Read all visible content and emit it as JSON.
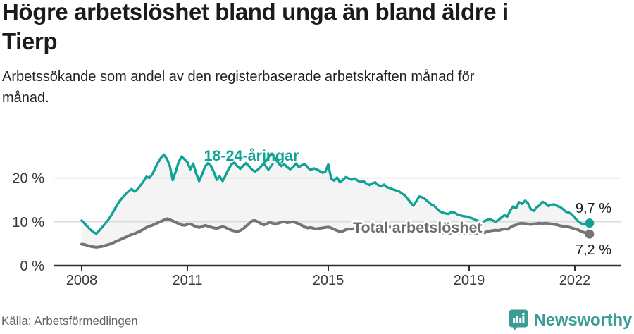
{
  "header": {
    "title_lines": [
      "Högre arbetslöshet bland unga än bland äldre i",
      "Tierp"
    ],
    "subtitle_lines": [
      "Arbetssökande som andel av den registerbaserade arbetskraften månad för",
      "månad."
    ]
  },
  "footer": {
    "source": "Källa: Arbetsförmedlingen",
    "brand": "Newsworthy",
    "brand_icon": "newsworthy-bubble-barchart-icon",
    "brand_color": "#3a9c94"
  },
  "chart_data": {
    "type": "line",
    "title": "Högre arbetslöshet bland unga än bland äldre i Tierp",
    "subtitle": "Arbetssökande som andel av den registerbaserade arbetskraften månad för månad.",
    "frequency": "monthly",
    "x_start": "2008-01",
    "x_end": "2022-06",
    "x_tick_years": [
      2008,
      2011,
      2015,
      2019,
      2022
    ],
    "x_tick_labels": [
      "2008",
      "2011",
      "2015",
      "2019",
      "2022"
    ],
    "y_ticks": [
      0,
      10,
      20
    ],
    "y_tick_labels": [
      "0 %",
      "10 %",
      "20 %"
    ],
    "ylim": [
      0,
      27
    ],
    "grid": "horizontal",
    "band_fill": "#f4f4f4",
    "axis_color": "#2e2e2e",
    "grid_color": "#dadada",
    "series": [
      {
        "name": "18-24-åringar",
        "color": "#11a296",
        "end_label": "9,7 %",
        "end_value": 9.7,
        "values": [
          10.3,
          9.6,
          8.9,
          8.2,
          7.6,
          7.3,
          8.0,
          8.8,
          9.6,
          10.4,
          11.4,
          12.6,
          13.8,
          14.8,
          15.6,
          16.3,
          17.0,
          17.5,
          16.9,
          17.4,
          18.3,
          19.2,
          20.3,
          20.0,
          20.8,
          22.2,
          23.5,
          24.6,
          25.3,
          24.4,
          22.8,
          19.5,
          21.4,
          23.6,
          24.9,
          24.3,
          23.6,
          22.0,
          23.3,
          21.0,
          19.3,
          20.8,
          22.6,
          23.4,
          22.8,
          21.4,
          19.6,
          20.4,
          19.3,
          20.6,
          22.0,
          23.1,
          23.5,
          22.7,
          22.1,
          22.8,
          23.4,
          22.7,
          21.9,
          21.5,
          21.9,
          22.6,
          23.3,
          24.1,
          25.1,
          25.4,
          24.4,
          23.4,
          22.7,
          23.1,
          22.5,
          22.0,
          22.5,
          23.3,
          22.5,
          22.9,
          23.2,
          22.4,
          21.8,
          22.2,
          22.0,
          21.6,
          21.2,
          21.4,
          23.1,
          19.8,
          19.4,
          20.1,
          19.0,
          19.6,
          20.2,
          19.9,
          19.6,
          19.9,
          19.4,
          19.1,
          19.3,
          18.7,
          18.4,
          18.8,
          19.0,
          18.4,
          18.1,
          18.5,
          17.9,
          17.7,
          17.4,
          17.2,
          17.0,
          16.5,
          16.1,
          15.3,
          14.4,
          13.7,
          14.7,
          15.8,
          15.6,
          15.2,
          14.6,
          14.0,
          13.7,
          13.0,
          12.4,
          12.1,
          11.9,
          11.8,
          12.3,
          12.1,
          11.7,
          11.5,
          11.3,
          11.2,
          11.0,
          10.8,
          10.5,
          10.2,
          9.9,
          10.1,
          10.4,
          10.7,
          10.3,
          10.0,
          10.4,
          11.0,
          11.5,
          11.2,
          12.6,
          13.5,
          13.1,
          14.5,
          14.1,
          14.8,
          14.3,
          12.9,
          12.5,
          13.3,
          13.8,
          14.6,
          14.2,
          13.6,
          13.9,
          14.0,
          13.6,
          13.4,
          12.9,
          12.3,
          12.1,
          11.7,
          10.9,
          10.2,
          9.7,
          9.4,
          9.5,
          9.7
        ]
      },
      {
        "name": "Total arbetslöshet",
        "color": "#747477",
        "end_label": "7,2 %",
        "end_value": 7.2,
        "values": [
          4.9,
          4.8,
          4.6,
          4.4,
          4.3,
          4.2,
          4.3,
          4.4,
          4.6,
          4.8,
          5.0,
          5.3,
          5.6,
          5.9,
          6.2,
          6.5,
          6.8,
          7.1,
          7.3,
          7.6,
          7.9,
          8.3,
          8.7,
          9.0,
          9.2,
          9.5,
          9.8,
          10.1,
          10.4,
          10.7,
          10.5,
          10.2,
          9.9,
          9.6,
          9.3,
          9.2,
          9.4,
          9.5,
          9.2,
          8.9,
          8.7,
          8.9,
          9.2,
          9.0,
          8.8,
          8.6,
          8.5,
          8.7,
          8.9,
          8.7,
          8.4,
          8.1,
          7.9,
          7.8,
          8.0,
          8.4,
          9.0,
          9.6,
          10.2,
          10.3,
          10.0,
          9.6,
          9.3,
          9.5,
          9.9,
          9.7,
          9.5,
          9.7,
          9.9,
          10.0,
          9.8,
          9.9,
          10.0,
          9.8,
          9.5,
          9.2,
          8.8,
          8.6,
          8.7,
          8.5,
          8.4,
          8.5,
          8.6,
          8.7,
          8.8,
          8.6,
          8.3,
          8.0,
          7.8,
          7.9,
          8.2,
          8.4,
          8.3,
          8.5,
          8.7,
          8.9,
          9.1,
          9.3,
          9.2,
          9.0,
          8.8,
          8.7,
          8.9,
          9.1,
          9.0,
          8.8,
          8.7,
          8.6,
          8.5,
          8.4,
          8.3,
          8.2,
          8.0,
          7.9,
          8.1,
          8.3,
          8.2,
          8.1,
          8.0,
          7.9,
          7.8,
          7.7,
          7.6,
          7.5,
          7.4,
          7.3,
          7.5,
          7.6,
          7.5,
          7.4,
          7.3,
          7.4,
          7.5,
          7.4,
          7.3,
          7.5,
          7.6,
          7.5,
          7.7,
          7.9,
          8.0,
          8.1,
          8.0,
          8.2,
          8.4,
          8.3,
          8.7,
          9.1,
          9.3,
          9.6,
          9.7,
          9.6,
          9.5,
          9.4,
          9.5,
          9.6,
          9.7,
          9.6,
          9.7,
          9.6,
          9.5,
          9.4,
          9.3,
          9.1,
          9.0,
          8.9,
          8.8,
          8.6,
          8.4,
          8.2,
          7.9,
          7.6,
          7.4,
          7.2
        ]
      }
    ],
    "legend_position": "inline-annotations"
  }
}
